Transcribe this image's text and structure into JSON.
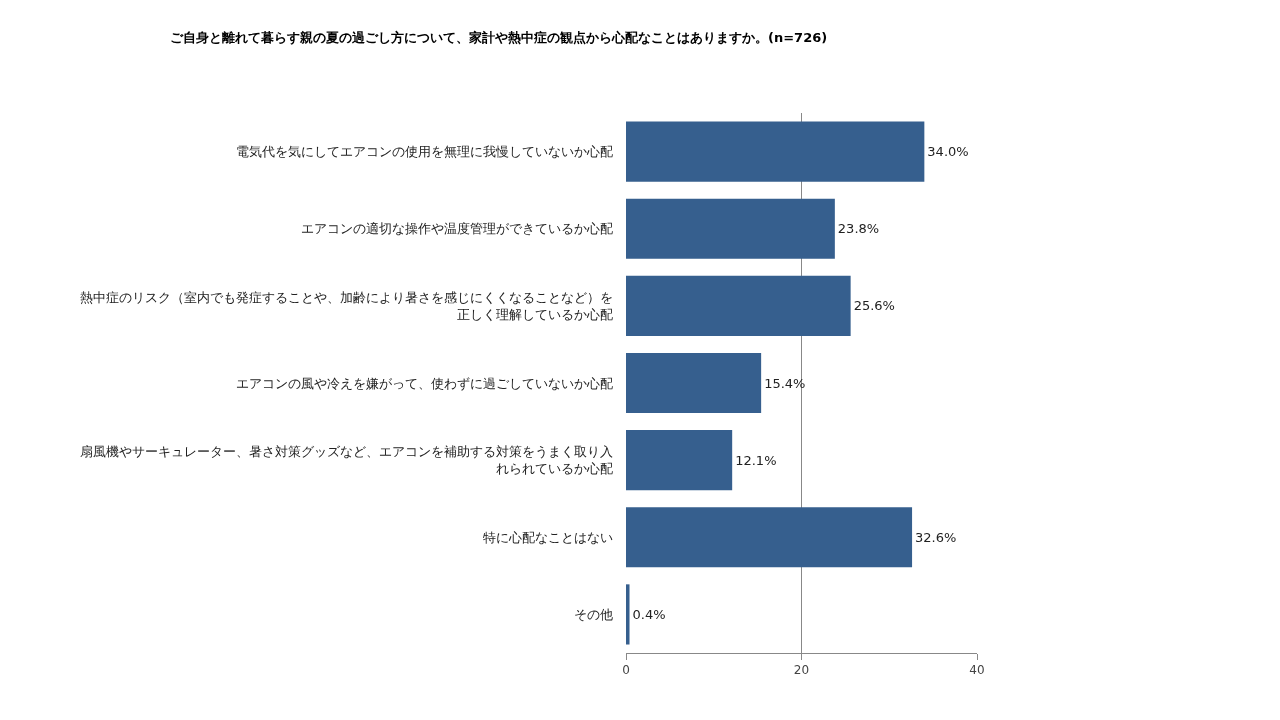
{
  "chart_data": {
    "type": "bar",
    "orientation": "horizontal",
    "title": "ご自身と離れて暮らす親の夏の過ごし方について、家計や熱中症の観点から心配なことはありますか。(n=726)",
    "categories": [
      "電気代を気にしてエアコンの使用を無理に我慢していないか心配",
      "エアコンの適切な操作や温度管理ができているか心配",
      "熱中症のリスク（室内でも発症することや、加齢により暑さを感じにくくなることなど）を正しく理解しているか心配",
      "エアコンの風や冷えを嫌がって、使わずに過ごしていないか心配",
      "扇風機やサーキュレーター、暑さ対策グッズなど、エアコンを補助する対策をうまく取り入れられているか心配",
      "特に心配なことはない",
      "その他"
    ],
    "values": [
      34.0,
      23.8,
      25.6,
      15.4,
      12.1,
      32.6,
      0.4
    ],
    "value_labels": [
      "34.0%",
      "23.8%",
      "25.6%",
      "15.4%",
      "12.1%",
      "32.6%",
      "0.4%"
    ],
    "color": "#365f8e",
    "xlim": [
      0,
      40
    ],
    "xticks": [
      0,
      20,
      40
    ],
    "grid": "x",
    "legend": false
  }
}
